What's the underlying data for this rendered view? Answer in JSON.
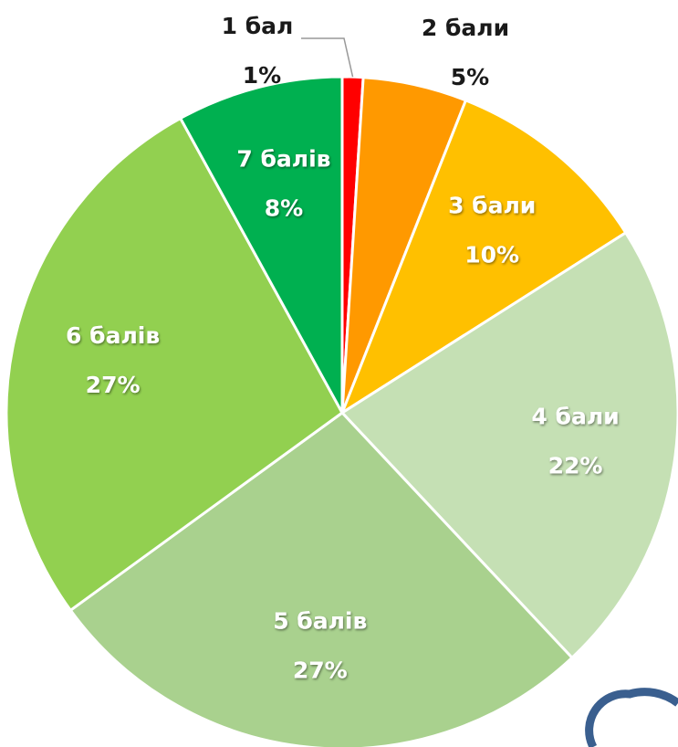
{
  "chart_data": {
    "type": "pie",
    "categories": [
      "1 бал",
      "2 бали",
      "3 бали",
      "4 бали",
      "5 балів",
      "6 балів",
      "7 балів"
    ],
    "values": [
      1,
      5,
      10,
      22,
      27,
      27,
      8
    ],
    "value_labels": [
      "1%",
      "5%",
      "10%",
      "22%",
      "27%",
      "27%",
      "8%"
    ],
    "colors": [
      "#ff0000",
      "#ff9900",
      "#ffc000",
      "#c5e0b4",
      "#a9d18e",
      "#92d050",
      "#00b050"
    ]
  }
}
